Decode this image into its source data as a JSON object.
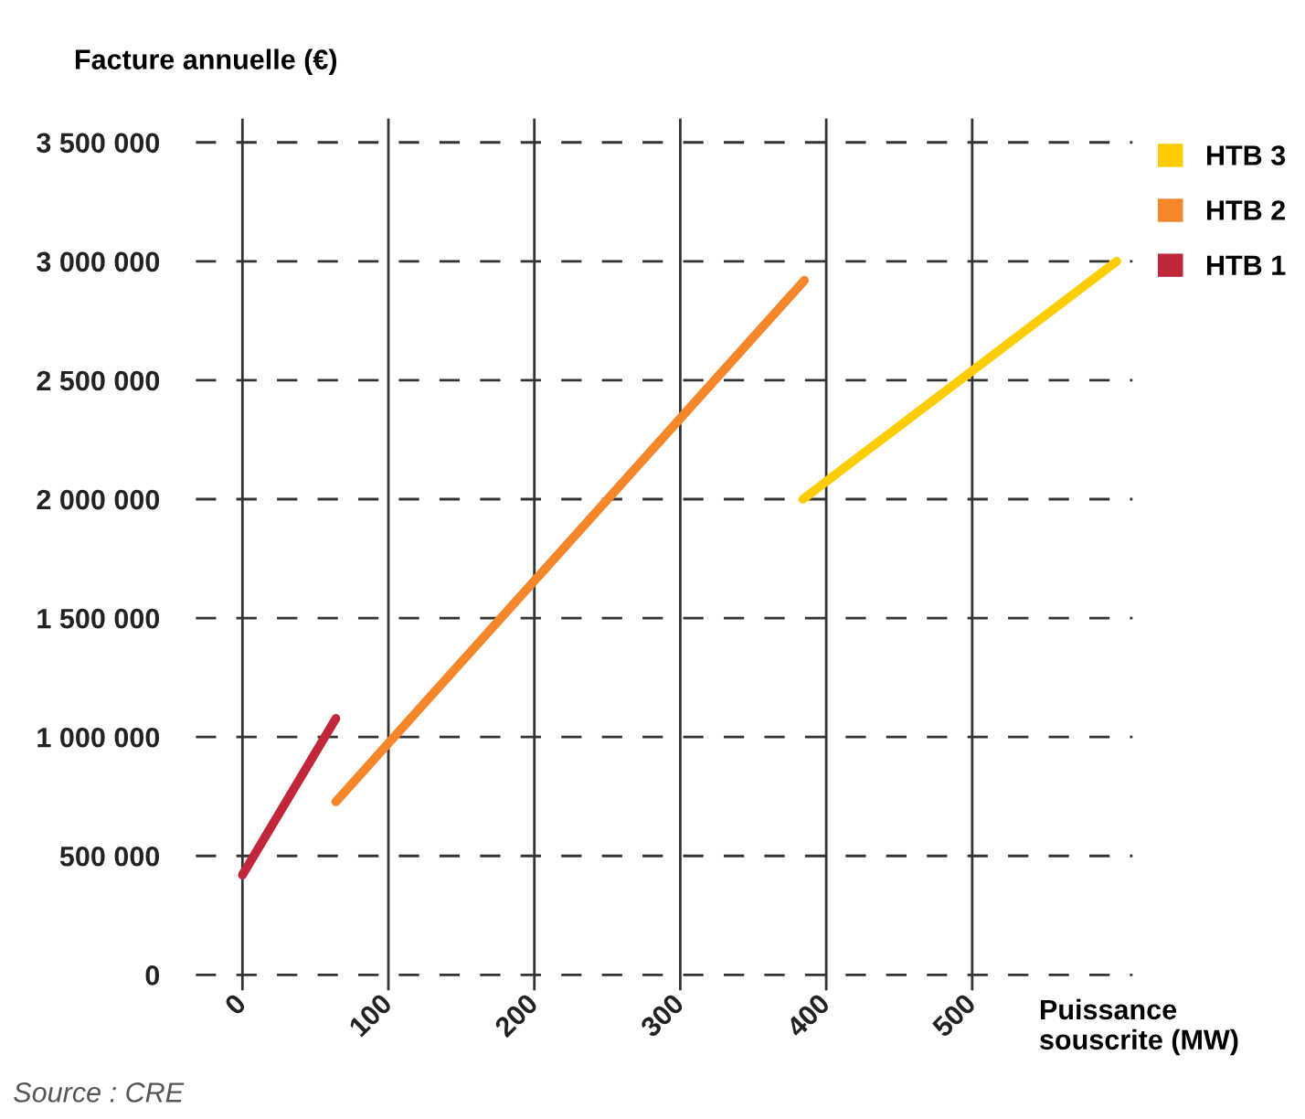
{
  "chart_data": {
    "type": "line",
    "ylabel": "Facture annuelle (€)",
    "xlabel": "Puissance\nsouscrite (MW)",
    "annotations": [
      "Source : CRE"
    ],
    "series": [
      {
        "name": "HTB 3",
        "color": "#ffcc00",
        "x": [
          384,
          599
        ],
        "values": [
          2000000,
          3000000
        ]
      },
      {
        "name": "HTB 2",
        "color": "#f5862a",
        "x": [
          64,
          385
        ],
        "values": [
          728000,
          2920000
        ]
      },
      {
        "name": "HTB 1",
        "color": "#c0283a",
        "x": [
          0,
          64
        ],
        "values": [
          420000,
          1078000
        ]
      }
    ],
    "xlim": [
      -32,
      610
    ],
    "xticks": [
      0,
      100,
      200,
      300,
      400,
      500
    ],
    "ylim": [
      -65000,
      3600000
    ],
    "yticks": [
      {
        "value": 0,
        "label": "0"
      },
      {
        "value": 500000,
        "label": "500 000"
      },
      {
        "value": 1000000,
        "label": "1 000 000"
      },
      {
        "value": 1500000,
        "label": "1 500 000"
      },
      {
        "value": 2000000,
        "label": "2 000 000"
      },
      {
        "value": 2500000,
        "label": "2 500 000"
      },
      {
        "value": 3000000,
        "label": "3 000 000"
      },
      {
        "value": 3500000,
        "label": "3 500 000"
      }
    ],
    "grid": true,
    "legend": "top right",
    "marker": "none",
    "line_style": "solid"
  }
}
